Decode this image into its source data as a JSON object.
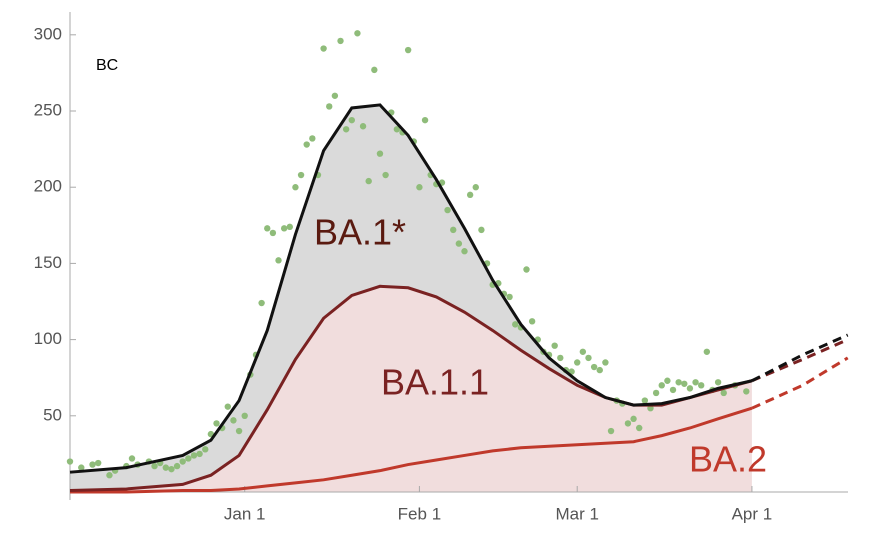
{
  "chart_data": {
    "type": "stacked-area",
    "annotations": {
      "region": "BC"
    },
    "x": [
      0,
      10,
      20,
      25,
      30,
      35,
      40,
      45,
      50,
      55,
      60,
      65,
      70,
      75,
      80,
      85,
      90,
      95,
      100,
      105,
      110,
      115,
      121,
      130,
      138
    ],
    "forecast_start": 121,
    "series": [
      {
        "name": "BA.2",
        "color": "#c0392b",
        "fill": "#f0d9d9",
        "values": [
          0,
          0,
          1,
          1,
          2,
          4,
          6,
          8,
          11,
          14,
          18,
          21,
          24,
          27,
          29,
          30,
          31,
          32,
          33,
          37,
          42,
          48,
          55,
          70,
          88
        ]
      },
      {
        "name": "BA.1.1",
        "color": "#7a2222",
        "fill": "#f0d9d9",
        "values": [
          1,
          2,
          4,
          10,
          22,
          50,
          81,
          106,
          118,
          121,
          116,
          107,
          94,
          79,
          64,
          51,
          39,
          30,
          24,
          20,
          20,
          19,
          18,
          17,
          12
        ]
      },
      {
        "name": "BA.1*",
        "color": "#111111",
        "fill": "#d6d6d6",
        "values": [
          12,
          14,
          19,
          23,
          36,
          52,
          82,
          110,
          123,
          119,
          100,
          77,
          55,
          33,
          17,
          7,
          3,
          0,
          0,
          1,
          0,
          1,
          0,
          3,
          3
        ]
      }
    ],
    "points": {
      "color": "#8fbc7a",
      "x": [
        0,
        2,
        4,
        5,
        7,
        8,
        10,
        11,
        12,
        14,
        15,
        16,
        17,
        18,
        19,
        20,
        21,
        22,
        23,
        24,
        25,
        26,
        27,
        28,
        29,
        30,
        31,
        32,
        33,
        34,
        35,
        36,
        37,
        38,
        39,
        40,
        41,
        42,
        43,
        44,
        45,
        46,
        47,
        48,
        49,
        50,
        51,
        52,
        53,
        54,
        55,
        56,
        57,
        58,
        59,
        60,
        61,
        62,
        63,
        64,
        65,
        66,
        67,
        68,
        69,
        70,
        71,
        72,
        73,
        74,
        75,
        76,
        77,
        78,
        79,
        80,
        81,
        82,
        83,
        84,
        85,
        86,
        87,
        88,
        89,
        90,
        91,
        92,
        93,
        94,
        95,
        96,
        97,
        98,
        99,
        100,
        101,
        102,
        103,
        104,
        105,
        106,
        107,
        108,
        109,
        110,
        111,
        112,
        113,
        114,
        115,
        116,
        118,
        120
      ],
      "values": [
        20,
        16,
        18,
        19,
        11,
        14,
        17,
        22,
        18,
        20,
        17,
        19,
        16,
        15,
        17,
        20,
        22,
        24,
        25,
        28,
        38,
        45,
        42,
        56,
        47,
        40,
        50,
        77,
        90,
        124,
        173,
        170,
        152,
        173,
        174,
        200,
        208,
        228,
        232,
        208,
        291,
        253,
        260,
        296,
        238,
        244,
        301,
        240,
        204,
        277,
        222,
        208,
        249,
        238,
        236,
        290,
        230,
        200,
        244,
        208,
        202,
        203,
        185,
        172,
        163,
        158,
        195,
        200,
        172,
        150,
        136,
        137,
        130,
        128,
        110,
        108,
        146,
        112,
        100,
        92,
        90,
        96,
        88,
        80,
        79,
        85,
        92,
        88,
        82,
        80,
        85,
        40,
        60,
        58,
        45,
        48,
        42,
        60,
        55,
        65,
        70,
        73,
        67,
        72,
        71,
        68,
        72,
        70,
        92,
        67,
        72,
        65,
        70,
        66
      ]
    },
    "xlim": [
      0,
      140
    ],
    "xticks": [
      {
        "value": 31,
        "label": "Jan 1"
      },
      {
        "value": 62,
        "label": "Feb 1"
      },
      {
        "value": 90,
        "label": "Mar 1"
      },
      {
        "value": 121,
        "label": "Apr 1"
      }
    ],
    "ylim": [
      0,
      313
    ],
    "yticks": [
      50,
      100,
      150,
      200,
      250,
      300
    ]
  }
}
